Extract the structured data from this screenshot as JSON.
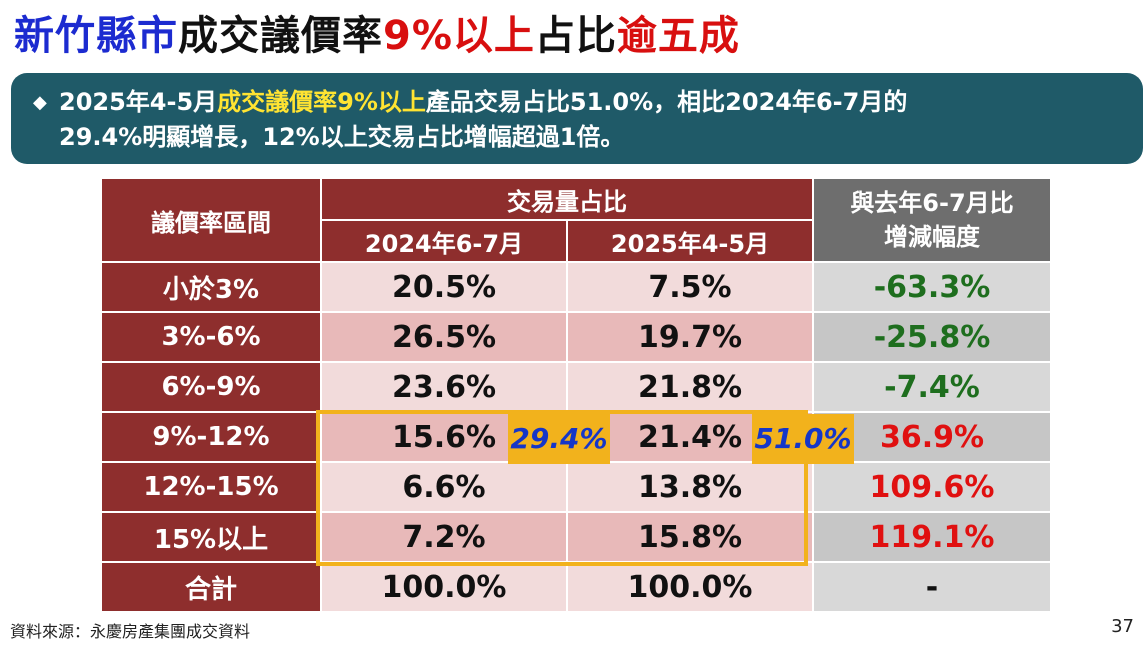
{
  "title": {
    "part1": "新竹縣市",
    "part2": "成交議價率",
    "part3": "9%以上",
    "part4": "占比",
    "part5": "逾五成"
  },
  "banner": {
    "bullet": "◆",
    "pre": "2025年4-5月",
    "highlight": "成交議價率9%以上",
    "post": "產品交易占比51.0%，相比2024年6-7月的",
    "line2": "29.4%明顯增長，12%以上交易占比增幅超過1倍。"
  },
  "table": {
    "range_header": "議價率區間",
    "share_header": "交易量占比",
    "col_2024": "2024年6-7月",
    "col_2025": "2025年4-5月",
    "change_header_1": "與去年6-7月比",
    "change_header_2": "增減幅度",
    "rows": [
      {
        "label": "小於3%",
        "v2024": "20.5%",
        "v2025": "7.5%",
        "change": "-63.3%"
      },
      {
        "label": "3%-6%",
        "v2024": "26.5%",
        "v2025": "19.7%",
        "change": "-25.8%"
      },
      {
        "label": "6%-9%",
        "v2024": "23.6%",
        "v2025": "21.8%",
        "change": "-7.4%"
      },
      {
        "label": "9%-12%",
        "v2024": "15.6%",
        "v2025": "21.4%",
        "change": "36.9%"
      },
      {
        "label": "12%-15%",
        "v2024": "6.6%",
        "v2025": "13.8%",
        "change": "109.6%"
      },
      {
        "label": "15%以上",
        "v2024": "7.2%",
        "v2025": "15.8%",
        "change": "119.1%"
      },
      {
        "label": "合計",
        "v2024": "100.0%",
        "v2025": "100.0%",
        "change": "-"
      }
    ]
  },
  "callouts": {
    "c2024": "29.4%",
    "c2025": "51.0%"
  },
  "colors": {
    "title_blue": "#1c2bd0",
    "title_red": "#d80f0f",
    "banner_bg": "#1f5a68",
    "banner_highlight": "#ffe432",
    "header_red": "#8e2e2d",
    "highlight_orange": "#f2b21c",
    "negative_green": "#1e6e1e",
    "positive_red": "#e01010"
  },
  "footer": {
    "source": "資料來源：永慶房產集團成交資料",
    "page": "37"
  }
}
